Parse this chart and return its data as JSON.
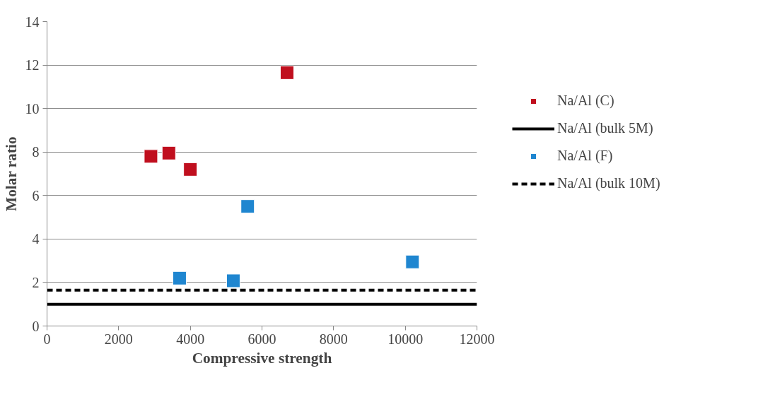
{
  "chart_data": {
    "type": "scatter",
    "xlabel": "Compressive strength",
    "ylabel": "Molar ratio",
    "xlim": [
      0,
      12000
    ],
    "ylim": [
      0,
      14
    ],
    "xticks": [
      0,
      2000,
      4000,
      6000,
      8000,
      10000,
      12000
    ],
    "yticks": [
      0,
      2,
      4,
      6,
      8,
      10,
      12,
      14
    ],
    "grid": "y",
    "legend": "right",
    "marker": "square",
    "series": [
      {
        "name": "Na/Al (C)",
        "color": "#c00f1e",
        "x": [
          2900,
          3400,
          4000,
          6700
        ],
        "values": [
          7.8,
          7.95,
          7.2,
          11.65
        ]
      },
      {
        "name": "Na/Al (bulk 5M)",
        "color": "#000000",
        "type": "line",
        "line_style": "solid",
        "marker": "none",
        "x": [
          0,
          12000
        ],
        "values": [
          1.0,
          1.0
        ]
      },
      {
        "name": "Na/Al (F)",
        "color": "#1f86d0",
        "x": [
          5600,
          3700,
          5200,
          10200
        ],
        "values": [
          5.5,
          2.2,
          2.08,
          2.95
        ]
      },
      {
        "name": "Na/Al (bulk 10M)",
        "color": "#000000",
        "type": "line",
        "line_style": "dashed",
        "marker": "none",
        "x": [
          0,
          12000
        ],
        "values": [
          1.65,
          1.65
        ]
      }
    ]
  }
}
